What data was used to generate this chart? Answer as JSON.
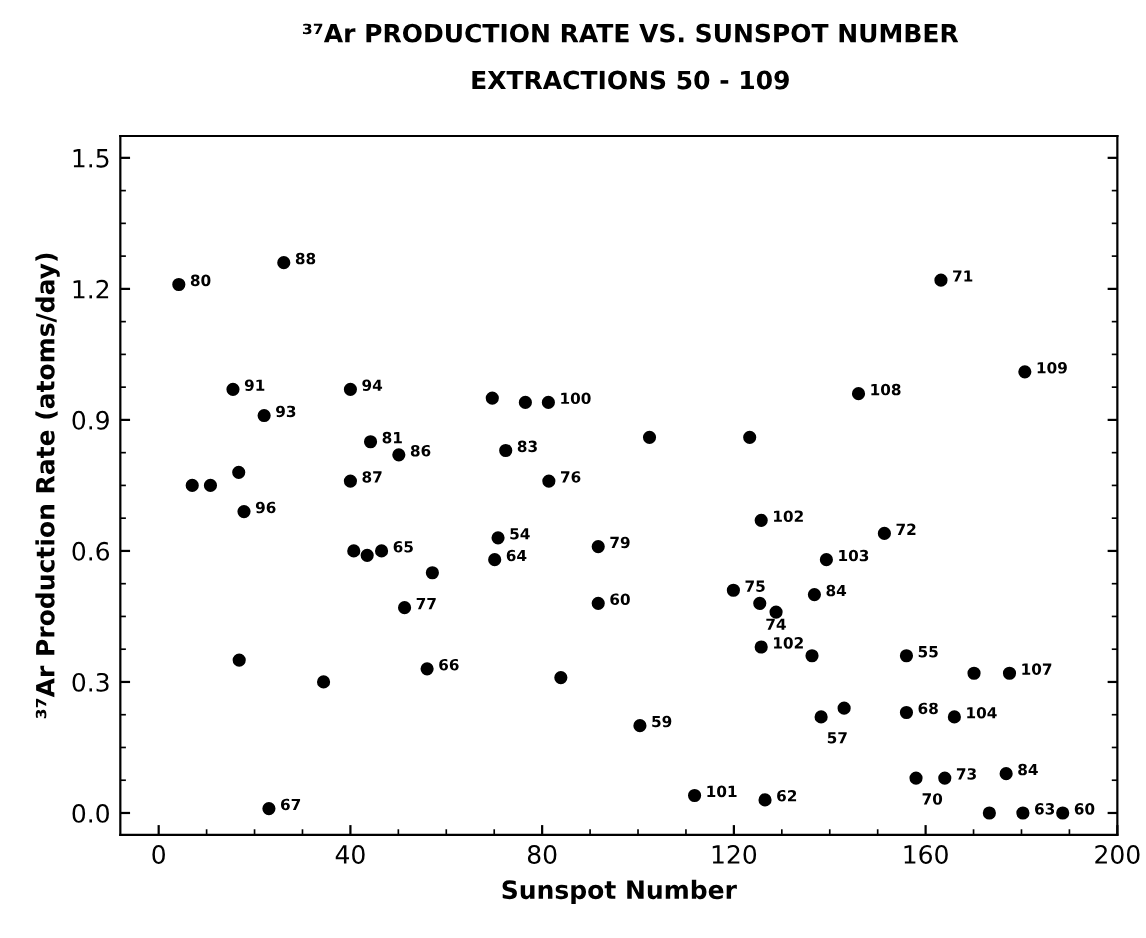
{
  "chart_data": {
    "type": "scatter",
    "title": "³⁷Ar PRODUCTION RATE VS. SUNSPOT NUMBER",
    "subtitle": "EXTRACTIONS 50 - 109",
    "xlabel": "Sunspot Number",
    "ylabel": "³⁷Ar Production Rate (atoms/day)",
    "xlim": [
      -8,
      200
    ],
    "ylim": [
      -0.05,
      1.55
    ],
    "xticks": [
      0,
      40,
      80,
      120,
      160,
      200
    ],
    "yticks": [
      {
        "value": 0,
        "label": "0.0"
      },
      0.3,
      0.6,
      0.9,
      1.2,
      1.5
    ],
    "marker": "circle",
    "grid": false,
    "legend": false,
    "series": [
      {
        "color": "#000000",
        "x": [
          4.2,
          26.1,
          15.5,
          22,
          40,
          44.2,
          50.1,
          69.6,
          76.5,
          81.3,
          72.4,
          81.4,
          7,
          10.8,
          16.7,
          17.8,
          40,
          16.8,
          23,
          34.4,
          40.7,
          43.5,
          46.5,
          51.3,
          57.1,
          56,
          70.1,
          70.8,
          83.9,
          91.7,
          91.7,
          163.2,
          180.7,
          146,
          102.4,
          123.3,
          125.7,
          151.4,
          139.3,
          119.9,
          125.4,
          128.8,
          136.8,
          125.7,
          136.3,
          156,
          170.1,
          177.5,
          100.4,
          138.2,
          143,
          156,
          166,
          111.8,
          126.5,
          158,
          164,
          176.8,
          173.3,
          180.3,
          188.6
        ],
        "values": [
          1.21,
          1.26,
          0.97,
          0.91,
          0.97,
          0.85,
          0.82,
          0.95,
          0.94,
          0.94,
          0.83,
          0.76,
          0.75,
          0.75,
          0.78,
          0.69,
          0.76,
          0.35,
          0.01,
          0.3,
          0.6,
          0.59,
          0.6,
          0.47,
          0.55,
          0.33,
          0.58,
          0.63,
          0.31,
          0.61,
          0.48,
          1.22,
          1.01,
          0.96,
          0.86,
          0.86,
          0.67,
          0.64,
          0.58,
          0.51,
          0.48,
          0.46,
          0.5,
          0.38,
          0.36,
          0.36,
          0.32,
          0.32,
          0.2,
          0.22,
          0.24,
          0.23,
          0.22,
          0.04,
          0.03,
          0.08,
          0.08,
          0.09,
          0.0,
          0.0,
          0.0
        ]
      }
    ],
    "annotations": [
      {
        "text": "80",
        "x": 4.2,
        "y": 1.21
      },
      {
        "text": "88",
        "x": 26.1,
        "y": 1.26
      },
      {
        "text": "91",
        "x": 15.5,
        "y": 0.97
      },
      {
        "text": "93",
        "x": 22,
        "y": 0.91
      },
      {
        "text": "94",
        "x": 40,
        "y": 0.97
      },
      {
        "text": "81",
        "x": 44.2,
        "y": 0.85
      },
      {
        "text": "86",
        "x": 50.1,
        "y": 0.82
      },
      {
        "text": "100",
        "x": 81.3,
        "y": 0.94
      },
      {
        "text": "83",
        "x": 72.4,
        "y": 0.83
      },
      {
        "text": "76",
        "x": 81.4,
        "y": 0.76
      },
      {
        "text": "96",
        "x": 17.8,
        "y": 0.69
      },
      {
        "text": "87",
        "x": 40,
        "y": 0.76
      },
      {
        "text": "67",
        "x": 23,
        "y": 0.01
      },
      {
        "text": "65",
        "x": 46.5,
        "y": 0.6
      },
      {
        "text": "77",
        "x": 51.3,
        "y": 0.47
      },
      {
        "text": "66",
        "x": 56,
        "y": 0.33
      },
      {
        "text": "64",
        "x": 70.1,
        "y": 0.58
      },
      {
        "text": "54",
        "x": 70.8,
        "y": 0.63
      },
      {
        "text": "79",
        "x": 91.7,
        "y": 0.61
      },
      {
        "text": "60",
        "x": 91.7,
        "y": 0.48
      },
      {
        "text": "71",
        "x": 163.2,
        "y": 1.22
      },
      {
        "text": "109",
        "x": 180.7,
        "y": 1.01
      },
      {
        "text": "108",
        "x": 146,
        "y": 0.96
      },
      {
        "text": "102",
        "x": 125.7,
        "y": 0.67
      },
      {
        "text": "72",
        "x": 151.4,
        "y": 0.64
      },
      {
        "text": "103",
        "x": 139.3,
        "y": 0.58
      },
      {
        "text": "75",
        "x": 119.9,
        "y": 0.51
      },
      {
        "text": "74",
        "x": 125.4,
        "y": 0.48
      },
      {
        "text": "84",
        "x": 136.8,
        "y": 0.5
      },
      {
        "text": "102",
        "x": 125.7,
        "y": 0.38
      },
      {
        "text": "55",
        "x": 156,
        "y": 0.36
      },
      {
        "text": "107",
        "x": 177.5,
        "y": 0.32
      },
      {
        "text": "59",
        "x": 100.4,
        "y": 0.2
      },
      {
        "text": "57",
        "x": 138.2,
        "y": 0.22
      },
      {
        "text": "68",
        "x": 156,
        "y": 0.23
      },
      {
        "text": "104",
        "x": 166,
        "y": 0.22
      },
      {
        "text": "101",
        "x": 111.8,
        "y": 0.04
      },
      {
        "text": "62",
        "x": 126.5,
        "y": 0.03
      },
      {
        "text": "70",
        "x": 158,
        "y": 0.08
      },
      {
        "text": "73",
        "x": 164,
        "y": 0.08
      },
      {
        "text": "84",
        "x": 176.8,
        "y": 0.09
      },
      {
        "text": "63",
        "x": 180.3,
        "y": 0.0
      },
      {
        "text": "60",
        "x": 188.6,
        "y": 0.0
      }
    ]
  }
}
